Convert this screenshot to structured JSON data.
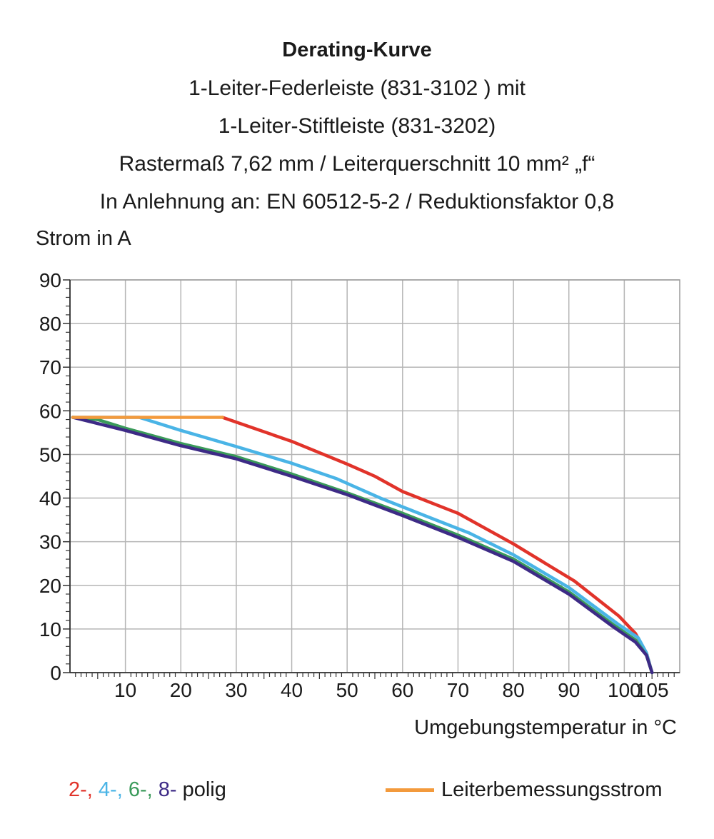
{
  "chart_data": {
    "type": "line",
    "title": "Derating-Kurve",
    "subtitles": [
      "1-Leiter-Federleiste (831-3102 ) mit",
      "1-Leiter-Stiftleiste (831-3202)",
      "Rastermaß 7,62 mm / Leiterquerschnitt 10 mm² „f“",
      "In Anlehnung an: EN 60512-5-2 / Reduktionsfaktor 0,8"
    ],
    "ylabel": "Strom in A",
    "xlabel": "Umgebungstemperatur in °C",
    "xlim": [
      0,
      110
    ],
    "ylim": [
      0,
      90
    ],
    "x_ticks": [
      10,
      20,
      30,
      40,
      50,
      60,
      70,
      80,
      90,
      100,
      105
    ],
    "x_tick_labels": [
      "10",
      "20",
      "30",
      "40",
      "50",
      "60",
      "70",
      "80",
      "90",
      "100",
      "105"
    ],
    "y_ticks": [
      0,
      10,
      20,
      30,
      40,
      50,
      60,
      70,
      80,
      90
    ],
    "y_tick_labels": [
      "0",
      "10",
      "20",
      "30",
      "40",
      "50",
      "60",
      "70",
      "80",
      "90"
    ],
    "grid": true,
    "series": [
      {
        "key": "rated",
        "color": "#f39a3c",
        "points": [
          [
            0.5,
            58.5
          ],
          [
            27.5,
            58.5
          ]
        ]
      },
      {
        "key": "p2",
        "color": "#e1332a",
        "points": [
          [
            27.5,
            58.5
          ],
          [
            40,
            53
          ],
          [
            50,
            47.8
          ],
          [
            55,
            45
          ],
          [
            60,
            41.5
          ],
          [
            70,
            36.5
          ],
          [
            80,
            29.5
          ],
          [
            91,
            21
          ],
          [
            99,
            13
          ],
          [
            102,
            9
          ],
          [
            104,
            4.5
          ],
          [
            105,
            0
          ]
        ]
      },
      {
        "key": "p4",
        "color": "#4ab4e6",
        "points": [
          [
            0.5,
            58.5
          ],
          [
            12.5,
            58.5
          ],
          [
            20,
            55.5
          ],
          [
            30,
            51.8
          ],
          [
            40,
            48
          ],
          [
            48,
            44.5
          ],
          [
            56,
            40
          ],
          [
            65,
            35.5
          ],
          [
            72,
            32
          ],
          [
            80,
            27
          ],
          [
            90,
            19.5
          ],
          [
            99,
            11
          ],
          [
            102.5,
            8
          ],
          [
            104,
            4.5
          ],
          [
            105,
            0
          ]
        ]
      },
      {
        "key": "p6",
        "color": "#3a9a5a",
        "points": [
          [
            0.5,
            58.5
          ],
          [
            5,
            58
          ],
          [
            10,
            56
          ],
          [
            20,
            52.5
          ],
          [
            30,
            49.5
          ],
          [
            40,
            45.5
          ],
          [
            50,
            41.2
          ],
          [
            60,
            36.5
          ],
          [
            70,
            31.5
          ],
          [
            80,
            26
          ],
          [
            90,
            18.5
          ],
          [
            98,
            11
          ],
          [
            102,
            7.5
          ],
          [
            104,
            4
          ],
          [
            105,
            0
          ]
        ]
      },
      {
        "key": "p8",
        "color": "#3d2a86",
        "points": [
          [
            0.5,
            58.5
          ],
          [
            10,
            55.5
          ],
          [
            20,
            52
          ],
          [
            30,
            49
          ],
          [
            40,
            45
          ],
          [
            50,
            40.8
          ],
          [
            60,
            36
          ],
          [
            70,
            31
          ],
          [
            80,
            25.5
          ],
          [
            90,
            18
          ],
          [
            98,
            10.5
          ],
          [
            102,
            7
          ],
          [
            104,
            4
          ],
          [
            105,
            0
          ]
        ]
      }
    ],
    "legend": {
      "position": "bottom",
      "poles_label": {
        "n2": "2-,",
        "n4": "4-,",
        "n6": "6-,",
        "n8": "8-",
        "suffix": " polig"
      },
      "n2_color": "#e1332a",
      "n4_color": "#4ab4e6",
      "n6_color": "#3a9a5a",
      "n8_color": "#3d2a86",
      "rated_label": "Leiterbemessungsstrom",
      "rated_color": "#f39a3c"
    }
  }
}
